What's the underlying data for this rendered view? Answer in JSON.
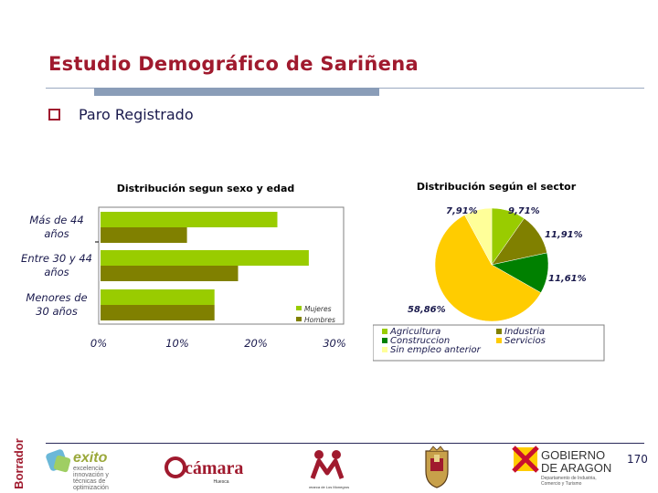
{
  "slide": {
    "title": "Estudio Demográfico de Sariñena",
    "bullet": "Paro Registrado",
    "page_number": "170"
  },
  "colors": {
    "title": "#a01a2e",
    "mujeres": "#99cc00",
    "hombres": "#808000",
    "agricultura": "#99cc00",
    "industria": "#808000",
    "construccion": "#008000",
    "servicios": "#ffcc00",
    "sin_empleo": "#ffff99"
  },
  "chart_data": [
    {
      "type": "bar",
      "orientation": "horizontal",
      "title": "Distribución segun sexo y edad",
      "categories": [
        "Más de 44 años",
        "Entre 30 y 44 años",
        "Menores de 30 años"
      ],
      "category_lines": [
        [
          "Más de 44",
          "años"
        ],
        [
          "Entre 30 y 44",
          "años"
        ],
        [
          "Menores de",
          "30 años"
        ]
      ],
      "series": [
        {
          "name": "Mujeres",
          "values": [
            22.5,
            26.5,
            14.5
          ]
        },
        {
          "name": "Hombres",
          "values": [
            11.0,
            17.5,
            14.5
          ]
        }
      ],
      "xlim": [
        0,
        30
      ],
      "xticks": [
        "0%",
        "10%",
        "20%",
        "30%"
      ],
      "legend": "bottom-right",
      "grid": false
    },
    {
      "type": "pie",
      "title": "Distribución según el sector",
      "slices": [
        {
          "name": "Agricultura",
          "value": 9.71,
          "label": "9,71%"
        },
        {
          "name": "Industria",
          "value": 11.91,
          "label": "11,91%"
        },
        {
          "name": "Construccion",
          "value": 11.61,
          "label": "11,61%"
        },
        {
          "name": "Servicios",
          "value": 58.86,
          "label": "58,86%"
        },
        {
          "name": "Sin empleo anterior",
          "value": 7.91,
          "label": "7,91%"
        }
      ],
      "legend": [
        [
          "Agricultura",
          "Industria"
        ],
        [
          "Construccion",
          "Servicios"
        ],
        [
          "Sin empleo anterior"
        ]
      ],
      "legend_position": "bottom"
    }
  ],
  "logos": {
    "borrador": "Borrador",
    "exito_name": "exito",
    "exito_sub": [
      "excelencia",
      "innovación y",
      "técnicas de",
      "optimización"
    ],
    "camara_name": "cámara",
    "camara_sub": "Huesca",
    "comarca_sub": [
      "Comarca de Los Monegros"
    ],
    "gobierno_name": [
      "GOBIERNO",
      "DE ARAGON"
    ],
    "gobierno_sub": [
      "Departamento de Industria,",
      "Comercio y Turismo"
    ]
  }
}
